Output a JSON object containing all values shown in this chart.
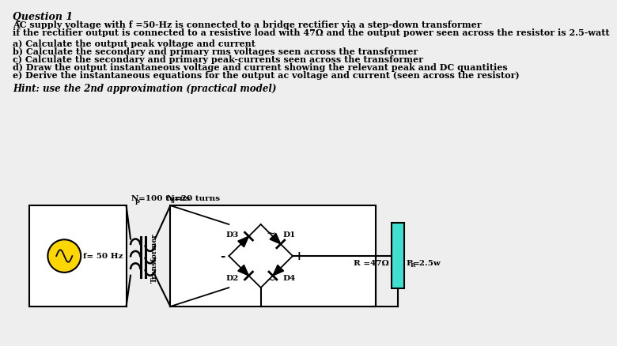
{
  "title": "Question 1",
  "line1": "AC supply voltage with f =50-Hz is connected to a bridge rectifier via a step-down transformer",
  "line2": "if the rectifier output is connected to a resistive load with 47Ω and the output power seen across the resistor is 2.5-watt",
  "items": [
    "a) Calculate the output peak voltage and current",
    "b) Calculate the secondary and primary rms voltages seen across the transformer",
    "c) Calculate the secondary and primary peak-currents seen across the transformer",
    "d) Draw the output instantaneous voltage and current showing the relevant peak and DC quantities",
    "e) Derive the instantaneous equations for the output ac voltage and current (seen across the resistor)"
  ],
  "hint": "Hint: use the 2nd approximation (practical model)",
  "np_label": "N =100 turns",
  "ns_label": "N =20 turns",
  "np_sub": "p",
  "ns_sub": "s",
  "f_label": "f= 50 Hz",
  "R_label": "R =47Ω",
  "PR_label": "P =2.5w",
  "PR_sub": "R",
  "transformer_label": "Transformer",
  "d1_label": "D1",
  "d2_label": "D2",
  "d3_label": "D3",
  "d4_label": "D4",
  "bg_color": "#eeeeee",
  "source_color": "#FFD700",
  "resistor_color": "#40E0D0",
  "text_color": "#000000",
  "plus_label": "+",
  "minus_label": "-"
}
